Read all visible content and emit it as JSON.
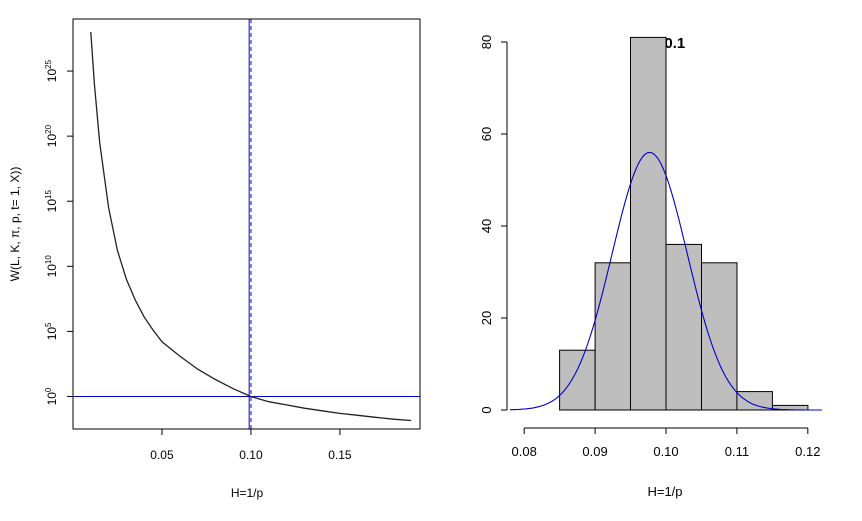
{
  "chart_data": [
    {
      "type": "line",
      "title": "",
      "xlabel": "H=1/p",
      "ylabel": "W(L, K, π, p, t= 1, X))",
      "y_scale": "log10",
      "xlim": [
        0.0,
        0.195
      ],
      "ylim_log10": [
        -2.5,
        29.0
      ],
      "xticks": [
        "0.05",
        "0.10",
        "0.15"
      ],
      "xtick_values": [
        0.05,
        0.1,
        0.15
      ],
      "ytick_base": "10",
      "ytick_exponents": [
        "0",
        "5",
        "10",
        "15",
        "20",
        "25"
      ],
      "series": [
        {
          "color": "#222222",
          "x": [
            0.01,
            0.012,
            0.015,
            0.02,
            0.025,
            0.03,
            0.035,
            0.04,
            0.045,
            0.05,
            0.06,
            0.07,
            0.08,
            0.09,
            0.1,
            0.11,
            0.12,
            0.13,
            0.14,
            0.15,
            0.16,
            0.17,
            0.18,
            0.19
          ],
          "y_log10": [
            28.0,
            24.0,
            19.5,
            14.5,
            11.2,
            9.0,
            7.4,
            6.1,
            5.1,
            4.2,
            3.1,
            2.1,
            1.3,
            0.6,
            0.0,
            -0.4,
            -0.65,
            -0.9,
            -1.1,
            -1.3,
            -1.45,
            -1.6,
            -1.75,
            -1.85
          ]
        }
      ],
      "reference_lines": [
        {
          "orientation": "vertical",
          "x": 0.099,
          "color": "#0000cc",
          "style": "solid"
        },
        {
          "orientation": "vertical",
          "x": 0.1,
          "color": "#0000cc",
          "style": "dashed"
        },
        {
          "orientation": "horizontal",
          "y_log10": 0,
          "color": "#0000cc",
          "style": "solid"
        }
      ]
    },
    {
      "type": "bar",
      "title": "H=0.1",
      "xlabel": "H=1/p",
      "ylabel": "",
      "xlim": [
        0.078,
        0.122
      ],
      "ylim": [
        0,
        85
      ],
      "xticks": [
        "0.08",
        "0.09",
        "0.10",
        "0.11",
        "0.12"
      ],
      "xtick_values": [
        0.08,
        0.09,
        0.1,
        0.11,
        0.12
      ],
      "yticks": [
        "0",
        "20",
        "40",
        "60",
        "80"
      ],
      "ytick_values": [
        0,
        20,
        40,
        60,
        80
      ],
      "bar_color": "#bebebe",
      "bins": [
        {
          "from": 0.085,
          "to": 0.09,
          "value": 13
        },
        {
          "from": 0.09,
          "to": 0.095,
          "value": 32
        },
        {
          "from": 0.095,
          "to": 0.1,
          "value": 81
        },
        {
          "from": 0.1,
          "to": 0.105,
          "value": 36
        },
        {
          "from": 0.105,
          "to": 0.11,
          "value": 32
        },
        {
          "from": 0.11,
          "to": 0.115,
          "value": 4
        },
        {
          "from": 0.115,
          "to": 0.12,
          "value": 1
        }
      ],
      "density_curve": {
        "color": "#0000cc",
        "mean": 0.0977,
        "sd": 0.0053,
        "peak": 56,
        "x_range": [
          0.078,
          0.122
        ]
      }
    }
  ]
}
